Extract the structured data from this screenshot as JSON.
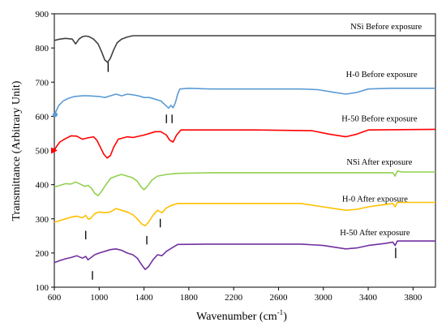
{
  "chart_data": {
    "type": "line",
    "title": "",
    "xlabel": "Wavenumber (cm",
    "xlabel_sup": "-1",
    "xlabel_close": ")",
    "ylabel": "Transmittance (Arbitrary Unit)",
    "xlim": [
      600,
      4000
    ],
    "ylim": [
      100,
      900
    ],
    "xticks": [
      "600",
      "1000",
      "1400",
      "1800",
      "2200",
      "2600",
      "3000",
      "3400",
      "3800"
    ],
    "yticks": [
      "100",
      "200",
      "300",
      "400",
      "500",
      "600",
      "700",
      "800",
      "900"
    ],
    "grid": false,
    "series": [
      {
        "name": "NSi Before exposure",
        "color": "#404040",
        "label_at": [
          3560,
          855
        ],
        "points": [
          [
            600,
            822
          ],
          [
            650,
            826
          ],
          [
            700,
            828
          ],
          [
            760,
            826
          ],
          [
            790,
            812
          ],
          [
            820,
            826
          ],
          [
            850,
            833
          ],
          [
            880,
            835
          ],
          [
            910,
            833
          ],
          [
            950,
            826
          ],
          [
            990,
            812
          ],
          [
            1020,
            790
          ],
          [
            1050,
            765
          ],
          [
            1075,
            758
          ],
          [
            1100,
            770
          ],
          [
            1130,
            795
          ],
          [
            1160,
            815
          ],
          [
            1200,
            826
          ],
          [
            1250,
            832
          ],
          [
            1300,
            836
          ],
          [
            1500,
            836
          ],
          [
            2000,
            836
          ],
          [
            2600,
            836
          ],
          [
            3200,
            836
          ],
          [
            3600,
            836
          ],
          [
            4000,
            836
          ]
        ]
      },
      {
        "name": "H-0 Before exposure",
        "color": "#5B9BD5",
        "label_at": [
          3520,
          715
        ],
        "points": [
          [
            600,
            605
          ],
          [
            615,
            615
          ],
          [
            640,
            632
          ],
          [
            680,
            645
          ],
          [
            720,
            652
          ],
          [
            780,
            658
          ],
          [
            850,
            660
          ],
          [
            900,
            660
          ],
          [
            1000,
            658
          ],
          [
            1050,
            655
          ],
          [
            1100,
            660
          ],
          [
            1150,
            665
          ],
          [
            1200,
            660
          ],
          [
            1250,
            665
          ],
          [
            1300,
            663
          ],
          [
            1350,
            660
          ],
          [
            1400,
            655
          ],
          [
            1450,
            655
          ],
          [
            1500,
            650
          ],
          [
            1550,
            645
          ],
          [
            1600,
            630
          ],
          [
            1620,
            624
          ],
          [
            1640,
            632
          ],
          [
            1660,
            625
          ],
          [
            1680,
            640
          ],
          [
            1700,
            665
          ],
          [
            1720,
            680
          ],
          [
            1800,
            682
          ],
          [
            2000,
            680
          ],
          [
            2400,
            680
          ],
          [
            2800,
            680
          ],
          [
            2950,
            678
          ],
          [
            3100,
            670
          ],
          [
            3200,
            665
          ],
          [
            3300,
            670
          ],
          [
            3400,
            680
          ],
          [
            3600,
            682
          ],
          [
            4000,
            682
          ]
        ]
      },
      {
        "name": "H-50 Before exposure",
        "color": "#FF0000",
        "label_at": [
          3500,
          586
        ],
        "points": [
          [
            600,
            500
          ],
          [
            620,
            512
          ],
          [
            650,
            525
          ],
          [
            700,
            535
          ],
          [
            750,
            543
          ],
          [
            800,
            542
          ],
          [
            850,
            533
          ],
          [
            900,
            537
          ],
          [
            950,
            540
          ],
          [
            980,
            530
          ],
          [
            1010,
            510
          ],
          [
            1040,
            490
          ],
          [
            1070,
            478
          ],
          [
            1100,
            485
          ],
          [
            1130,
            510
          ],
          [
            1170,
            533
          ],
          [
            1250,
            540
          ],
          [
            1300,
            538
          ],
          [
            1400,
            545
          ],
          [
            1500,
            555
          ],
          [
            1550,
            555
          ],
          [
            1600,
            545
          ],
          [
            1630,
            530
          ],
          [
            1660,
            525
          ],
          [
            1690,
            545
          ],
          [
            1730,
            560
          ],
          [
            2000,
            560
          ],
          [
            2400,
            560
          ],
          [
            2900,
            558
          ],
          [
            3050,
            548
          ],
          [
            3200,
            540
          ],
          [
            3300,
            548
          ],
          [
            3400,
            560
          ],
          [
            4000,
            562
          ]
        ]
      },
      {
        "name": "NSi After exposure",
        "color": "#92D050",
        "label_at": [
          3500,
          458
        ],
        "points": [
          [
            600,
            393
          ],
          [
            650,
            398
          ],
          [
            700,
            403
          ],
          [
            750,
            402
          ],
          [
            790,
            408
          ],
          [
            830,
            402
          ],
          [
            870,
            395
          ],
          [
            900,
            398
          ],
          [
            930,
            390
          ],
          [
            960,
            375
          ],
          [
            990,
            368
          ],
          [
            1020,
            380
          ],
          [
            1060,
            400
          ],
          [
            1100,
            418
          ],
          [
            1150,
            425
          ],
          [
            1200,
            430
          ],
          [
            1250,
            425
          ],
          [
            1300,
            420
          ],
          [
            1340,
            410
          ],
          [
            1370,
            395
          ],
          [
            1400,
            385
          ],
          [
            1430,
            395
          ],
          [
            1470,
            413
          ],
          [
            1520,
            425
          ],
          [
            1600,
            430
          ],
          [
            1700,
            433
          ],
          [
            2000,
            435
          ],
          [
            2500,
            435
          ],
          [
            3000,
            435
          ],
          [
            3500,
            435
          ],
          [
            3620,
            435
          ],
          [
            3640,
            425
          ],
          [
            3660,
            440
          ],
          [
            3700,
            437
          ],
          [
            4000,
            437
          ]
        ]
      },
      {
        "name": "H-0 After exposure",
        "color": "#FFC000",
        "label_at": [
          3460,
          350
        ],
        "points": [
          [
            600,
            290
          ],
          [
            650,
            295
          ],
          [
            700,
            300
          ],
          [
            750,
            305
          ],
          [
            800,
            308
          ],
          [
            850,
            303
          ],
          [
            880,
            310
          ],
          [
            900,
            300
          ],
          [
            920,
            300
          ],
          [
            960,
            315
          ],
          [
            1000,
            320
          ],
          [
            1050,
            318
          ],
          [
            1100,
            320
          ],
          [
            1150,
            330
          ],
          [
            1200,
            325
          ],
          [
            1250,
            320
          ],
          [
            1300,
            312
          ],
          [
            1340,
            300
          ],
          [
            1380,
            285
          ],
          [
            1410,
            280
          ],
          [
            1440,
            290
          ],
          [
            1480,
            310
          ],
          [
            1520,
            325
          ],
          [
            1560,
            318
          ],
          [
            1600,
            332
          ],
          [
            1650,
            340
          ],
          [
            1700,
            345
          ],
          [
            2000,
            345
          ],
          [
            2400,
            345
          ],
          [
            2800,
            345
          ],
          [
            3000,
            335
          ],
          [
            3200,
            325
          ],
          [
            3300,
            328
          ],
          [
            3400,
            335
          ],
          [
            3500,
            340
          ],
          [
            3620,
            345
          ],
          [
            3640,
            335
          ],
          [
            3660,
            348
          ],
          [
            4000,
            348
          ]
        ]
      },
      {
        "name": "H-50 After exposure",
        "color": "#7030A0",
        "label_at": [
          3460,
          252
        ],
        "points": [
          [
            600,
            172
          ],
          [
            650,
            178
          ],
          [
            700,
            183
          ],
          [
            750,
            187
          ],
          [
            800,
            192
          ],
          [
            850,
            185
          ],
          [
            880,
            190
          ],
          [
            900,
            180
          ],
          [
            920,
            185
          ],
          [
            960,
            195
          ],
          [
            1000,
            200
          ],
          [
            1050,
            205
          ],
          [
            1100,
            210
          ],
          [
            1150,
            212
          ],
          [
            1200,
            208
          ],
          [
            1250,
            200
          ],
          [
            1300,
            195
          ],
          [
            1340,
            185
          ],
          [
            1380,
            165
          ],
          [
            1410,
            152
          ],
          [
            1440,
            160
          ],
          [
            1480,
            180
          ],
          [
            1520,
            195
          ],
          [
            1560,
            192
          ],
          [
            1600,
            205
          ],
          [
            1650,
            215
          ],
          [
            1700,
            225
          ],
          [
            2000,
            226
          ],
          [
            2400,
            226
          ],
          [
            2800,
            226
          ],
          [
            3000,
            222
          ],
          [
            3200,
            212
          ],
          [
            3300,
            215
          ],
          [
            3400,
            222
          ],
          [
            3550,
            228
          ],
          [
            3620,
            232
          ],
          [
            3640,
            222
          ],
          [
            3660,
            235
          ],
          [
            4000,
            235
          ]
        ]
      }
    ],
    "markers": [
      {
        "x": 1080,
        "y1": 758,
        "y2": 730
      },
      {
        "x": 1600,
        "y1": 605,
        "y2": 580
      },
      {
        "x": 1650,
        "y1": 605,
        "y2": 580
      },
      {
        "x": 880,
        "y1": 265,
        "y2": 240
      },
      {
        "x": 1425,
        "y1": 250,
        "y2": 225
      },
      {
        "x": 1545,
        "y1": 300,
        "y2": 275
      },
      {
        "x": 940,
        "y1": 147,
        "y2": 122
      },
      {
        "x": 3645,
        "y1": 215,
        "y2": 185
      }
    ]
  }
}
